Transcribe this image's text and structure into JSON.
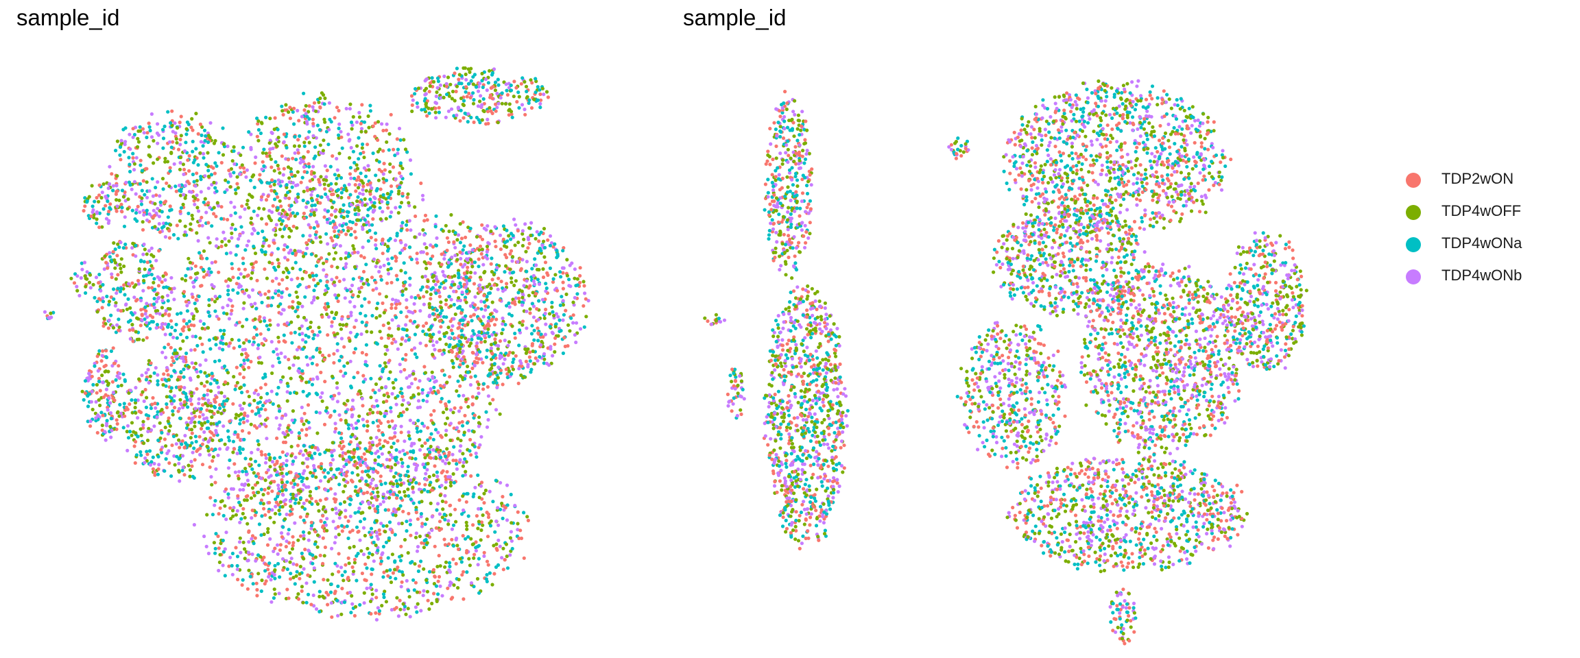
{
  "chart_data": [
    {
      "type": "scatter",
      "panel": "left",
      "title": "sample_id",
      "grid": false,
      "axes": false,
      "legend_placement": "none",
      "series": [
        {
          "name": "TDP2wON",
          "color": "#F8766D"
        },
        {
          "name": "TDP4wOFF",
          "color": "#7CAE00"
        },
        {
          "name": "TDP4wONa",
          "color": "#00BFC4"
        },
        {
          "name": "TDP4wONb",
          "color": "#C77CFF"
        }
      ],
      "clusters": [
        {
          "cx": 0.5,
          "cy": 0.5,
          "rx": 0.3,
          "ry": 0.3,
          "n": 2400
        },
        {
          "cx": 0.22,
          "cy": 0.2,
          "rx": 0.12,
          "ry": 0.11,
          "n": 420
        },
        {
          "cx": 0.48,
          "cy": 0.18,
          "rx": 0.15,
          "ry": 0.12,
          "n": 500
        },
        {
          "cx": 0.75,
          "cy": 0.06,
          "rx": 0.12,
          "ry": 0.05,
          "n": 280
        },
        {
          "cx": 0.8,
          "cy": 0.42,
          "rx": 0.14,
          "ry": 0.14,
          "n": 700
        },
        {
          "cx": 0.15,
          "cy": 0.4,
          "rx": 0.07,
          "ry": 0.09,
          "n": 260
        },
        {
          "cx": 0.1,
          "cy": 0.58,
          "rx": 0.04,
          "ry": 0.08,
          "n": 160
        },
        {
          "cx": 0.22,
          "cy": 0.62,
          "rx": 0.09,
          "ry": 0.11,
          "n": 320
        },
        {
          "cx": 0.55,
          "cy": 0.82,
          "rx": 0.28,
          "ry": 0.15,
          "n": 1100
        },
        {
          "cx": 0.1,
          "cy": 0.25,
          "rx": 0.04,
          "ry": 0.04,
          "n": 70
        },
        {
          "cx": 0.06,
          "cy": 0.38,
          "rx": 0.02,
          "ry": 0.03,
          "n": 24
        },
        {
          "cx": 0.0,
          "cy": 0.44,
          "rx": 0.01,
          "ry": 0.01,
          "n": 8
        }
      ]
    },
    {
      "type": "scatter",
      "panel": "right",
      "title": "sample_id",
      "grid": false,
      "axes": false,
      "legend_placement": "right",
      "series": [
        {
          "name": "TDP2wON",
          "color": "#F8766D"
        },
        {
          "name": "TDP4wOFF",
          "color": "#7CAE00"
        },
        {
          "name": "TDP4wONa",
          "color": "#00BFC4"
        },
        {
          "name": "TDP4wONb",
          "color": "#C77CFF"
        }
      ],
      "clusters": [
        {
          "cx": 0.13,
          "cy": 0.22,
          "rx": 0.04,
          "ry": 0.16,
          "n": 350
        },
        {
          "cx": 0.16,
          "cy": 0.62,
          "rx": 0.07,
          "ry": 0.22,
          "n": 900
        },
        {
          "cx": 0.04,
          "cy": 0.58,
          "rx": 0.015,
          "ry": 0.05,
          "n": 40
        },
        {
          "cx": 0.0,
          "cy": 0.45,
          "rx": 0.02,
          "ry": 0.01,
          "n": 14
        },
        {
          "cx": 0.43,
          "cy": 0.15,
          "rx": 0.02,
          "ry": 0.02,
          "n": 24
        },
        {
          "cx": 0.7,
          "cy": 0.17,
          "rx": 0.19,
          "ry": 0.13,
          "n": 1100
        },
        {
          "cx": 0.62,
          "cy": 0.35,
          "rx": 0.13,
          "ry": 0.1,
          "n": 600
        },
        {
          "cx": 0.52,
          "cy": 0.58,
          "rx": 0.09,
          "ry": 0.13,
          "n": 450
        },
        {
          "cx": 0.78,
          "cy": 0.52,
          "rx": 0.14,
          "ry": 0.16,
          "n": 1000
        },
        {
          "cx": 0.96,
          "cy": 0.42,
          "rx": 0.07,
          "ry": 0.12,
          "n": 400
        },
        {
          "cx": 0.72,
          "cy": 0.79,
          "rx": 0.2,
          "ry": 0.1,
          "n": 900
        },
        {
          "cx": 0.71,
          "cy": 0.97,
          "rx": 0.025,
          "ry": 0.05,
          "n": 60
        }
      ]
    }
  ],
  "legend": {
    "items": [
      {
        "label": "TDP2wON",
        "color": "#F8766D"
      },
      {
        "label": "TDP4wOFF",
        "color": "#7CAE00"
      },
      {
        "label": "TDP4wONa",
        "color": "#00BFC4"
      },
      {
        "label": "TDP4wONb",
        "color": "#C77CFF"
      }
    ]
  }
}
